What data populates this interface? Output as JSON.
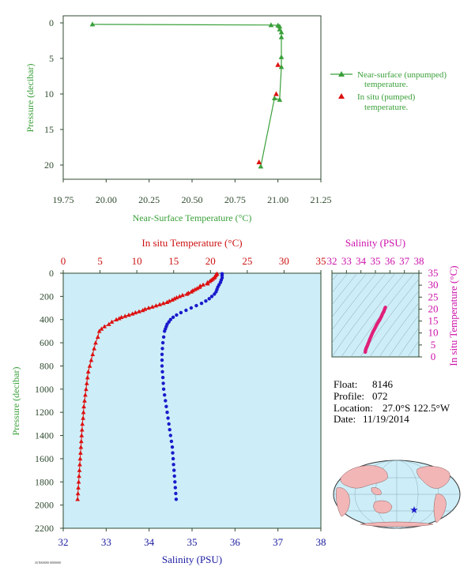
{
  "chart_data": [
    {
      "type": "line",
      "id": "near-surface",
      "xlabel": "Near-Surface Temperature (°C)",
      "ylabel": "Pressure (decibar)",
      "xlim": [
        19.75,
        21.25
      ],
      "ylim": [
        22,
        -1
      ],
      "xticks": [
        "19.75",
        "20.00",
        "20.25",
        "20.50",
        "20.75",
        "21.00",
        "21.25"
      ],
      "yticks": [
        "0",
        "5",
        "10",
        "15",
        "20"
      ],
      "legend": [
        {
          "label_line1": "Near-surface (unpumped)",
          "label_line2": "temperature.",
          "color": "#3aa03a",
          "marker": "triangle-line"
        },
        {
          "label_line1": "In situ (pumped)",
          "label_line2": "temperature.",
          "color": "#dd1111",
          "marker": "triangle"
        }
      ],
      "series": [
        {
          "name": "Near-surface (unpumped) temperature.",
          "temperature": [
            19.92,
            20.96,
            21.0,
            21.01,
            21.01,
            21.02,
            21.02,
            21.02,
            21.02,
            21.01,
            20.98,
            20.9
          ],
          "pressure": [
            0.2,
            0.3,
            0.35,
            0.5,
            0.9,
            1.3,
            2.0,
            4.8,
            6.2,
            10.8,
            10.6,
            20.2
          ]
        },
        {
          "name": "In situ (pumped) temperature.",
          "temperature": [
            21.0,
            20.99,
            20.89
          ],
          "pressure": [
            5.9,
            10.0,
            19.6
          ]
        }
      ]
    },
    {
      "type": "line",
      "id": "profile",
      "ylabel": "Pressure (decibar)",
      "top_xlabel": "In situ Temperature (°C)",
      "bottom_xlabel": "Salinity (PSU)",
      "temp_lim": [
        0,
        35
      ],
      "sal_lim": [
        32,
        38
      ],
      "ylim": [
        0,
        2200
      ],
      "temp_ticks": [
        "0",
        "5",
        "10",
        "15",
        "20",
        "25",
        "30",
        "35"
      ],
      "sal_ticks": [
        "32",
        "33",
        "34",
        "35",
        "36",
        "37",
        "38"
      ],
      "yticks": [
        "0",
        "200",
        "400",
        "600",
        "800",
        "1000",
        "1200",
        "1400",
        "1600",
        "1800",
        "2000",
        "2200"
      ],
      "temperature_series": {
        "pressure": [
          5,
          10,
          20,
          30,
          40,
          50,
          60,
          70,
          80,
          90,
          100,
          110,
          120,
          130,
          140,
          150,
          160,
          170,
          180,
          190,
          200,
          210,
          220,
          230,
          240,
          250,
          260,
          270,
          280,
          290,
          300,
          310,
          320,
          330,
          340,
          350,
          360,
          370,
          380,
          390,
          400,
          420,
          440,
          460,
          480,
          500,
          550,
          600,
          650,
          700,
          750,
          800,
          850,
          900,
          950,
          1000,
          1050,
          1100,
          1150,
          1200,
          1250,
          1300,
          1350,
          1400,
          1450,
          1500,
          1550,
          1600,
          1650,
          1700,
          1750,
          1800,
          1850,
          1900,
          1950
        ],
        "values": [
          20.9,
          20.8,
          20.7,
          20.6,
          20.5,
          20.3,
          20.1,
          19.9,
          19.6,
          19.6,
          19.0,
          18.6,
          18.5,
          18.2,
          17.9,
          17.6,
          17.4,
          17.0,
          16.8,
          16.2,
          15.8,
          15.4,
          15.1,
          14.8,
          14.4,
          14.1,
          13.6,
          13.1,
          12.6,
          12.1,
          11.6,
          11.1,
          10.8,
          10.3,
          9.8,
          9.4,
          8.9,
          8.4,
          7.9,
          7.6,
          7.2,
          6.6,
          6.2,
          5.6,
          5.2,
          4.9,
          4.7,
          4.4,
          4.2,
          4.0,
          3.8,
          3.6,
          3.4,
          3.3,
          3.2,
          3.1,
          3.0,
          2.9,
          2.8,
          2.75,
          2.7,
          2.6,
          2.55,
          2.5,
          2.45,
          2.4,
          2.35,
          2.3,
          2.25,
          2.2,
          2.15,
          2.1,
          2.05,
          2.0,
          1.95
        ]
      },
      "salinity_series": {
        "pressure": [
          5,
          20,
          40,
          60,
          80,
          100,
          120,
          140,
          160,
          180,
          200,
          220,
          240,
          260,
          280,
          300,
          320,
          340,
          360,
          380,
          400,
          420,
          440,
          460,
          480,
          500,
          550,
          600,
          650,
          700,
          750,
          800,
          850,
          900,
          950,
          1000,
          1050,
          1100,
          1150,
          1200,
          1250,
          1300,
          1350,
          1400,
          1450,
          1500,
          1550,
          1600,
          1650,
          1700,
          1750,
          1800,
          1850,
          1900,
          1950
        ],
        "values": [
          35.7,
          35.7,
          35.7,
          35.68,
          35.66,
          35.63,
          35.6,
          35.58,
          35.56,
          35.52,
          35.46,
          35.4,
          35.32,
          35.22,
          35.1,
          34.98,
          34.86,
          34.74,
          34.64,
          34.56,
          34.5,
          34.46,
          34.42,
          34.4,
          34.38,
          34.36,
          34.34,
          34.32,
          34.31,
          34.3,
          34.3,
          34.3,
          34.31,
          34.32,
          34.33,
          34.34,
          34.36,
          34.38,
          34.4,
          34.42,
          34.44,
          34.46,
          34.48,
          34.5,
          34.52,
          34.54,
          34.55,
          34.56,
          34.57,
          34.58,
          34.59,
          34.6,
          34.61,
          34.62,
          34.63
        ]
      }
    },
    {
      "type": "scatter",
      "id": "ts-diagram",
      "top_xlabel": "Salinity (PSU)",
      "right_ylabel": "In situ Temperature (°C)",
      "xlim": [
        32,
        38
      ],
      "ylim": [
        0,
        35
      ],
      "xticks": [
        "32",
        "33",
        "34",
        "35",
        "36",
        "37",
        "38"
      ],
      "yticks": [
        "0",
        "5",
        "10",
        "15",
        "20",
        "25",
        "30",
        "35"
      ],
      "salinity": [
        34.3,
        34.32,
        34.36,
        34.42,
        34.5,
        34.6,
        34.72,
        34.86,
        34.98,
        35.1,
        35.22,
        35.32,
        35.42,
        35.5,
        35.58,
        35.66,
        35.7
      ],
      "temperature": [
        2.0,
        2.8,
        3.6,
        4.4,
        5.6,
        7.2,
        8.9,
        10.8,
        12.1,
        13.6,
        14.8,
        15.8,
        17.0,
        18.2,
        19.0,
        20.3,
        20.9
      ]
    }
  ],
  "info": {
    "float_label": "Float:",
    "float_value": "8146",
    "profile_label": "Profile:",
    "profile_value": "072",
    "location_label": "Location:",
    "location_value": "27.0°S  122.5°W",
    "date_label": "Date:",
    "date_value": "11/19/2014"
  },
  "footer_text": "JUNK0000 0000000",
  "colors": {
    "green": "#3aa03a",
    "red": "#dd1111",
    "blue": "#1a1acc",
    "magenta": "#cc11aa",
    "plot_bg": "#cdeef8",
    "land": "#f2b6b6",
    "ocean": "#cdeef8"
  }
}
